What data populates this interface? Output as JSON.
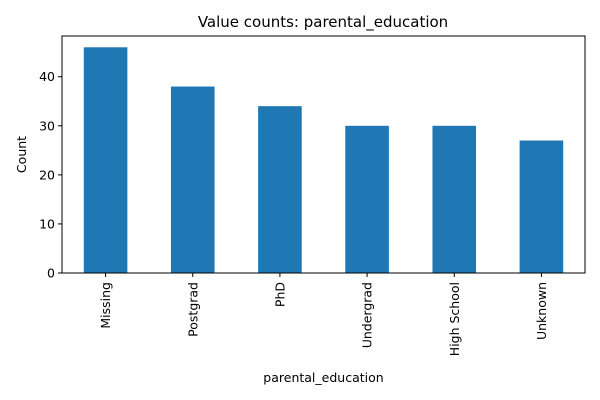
{
  "chart_data": {
    "type": "bar",
    "title": "Value counts: parental_education",
    "xlabel": "parental_education",
    "ylabel": "Count",
    "categories": [
      "Missing",
      "Postgrad",
      "PhD",
      "Undergrad",
      "High School",
      "Unknown"
    ],
    "values": [
      46,
      38,
      34,
      30,
      30,
      27
    ],
    "ylim": [
      0,
      48.3
    ],
    "yticks": [
      0,
      10,
      20,
      30,
      40
    ],
    "grid": false,
    "bar_color": "#1f77b4"
  }
}
